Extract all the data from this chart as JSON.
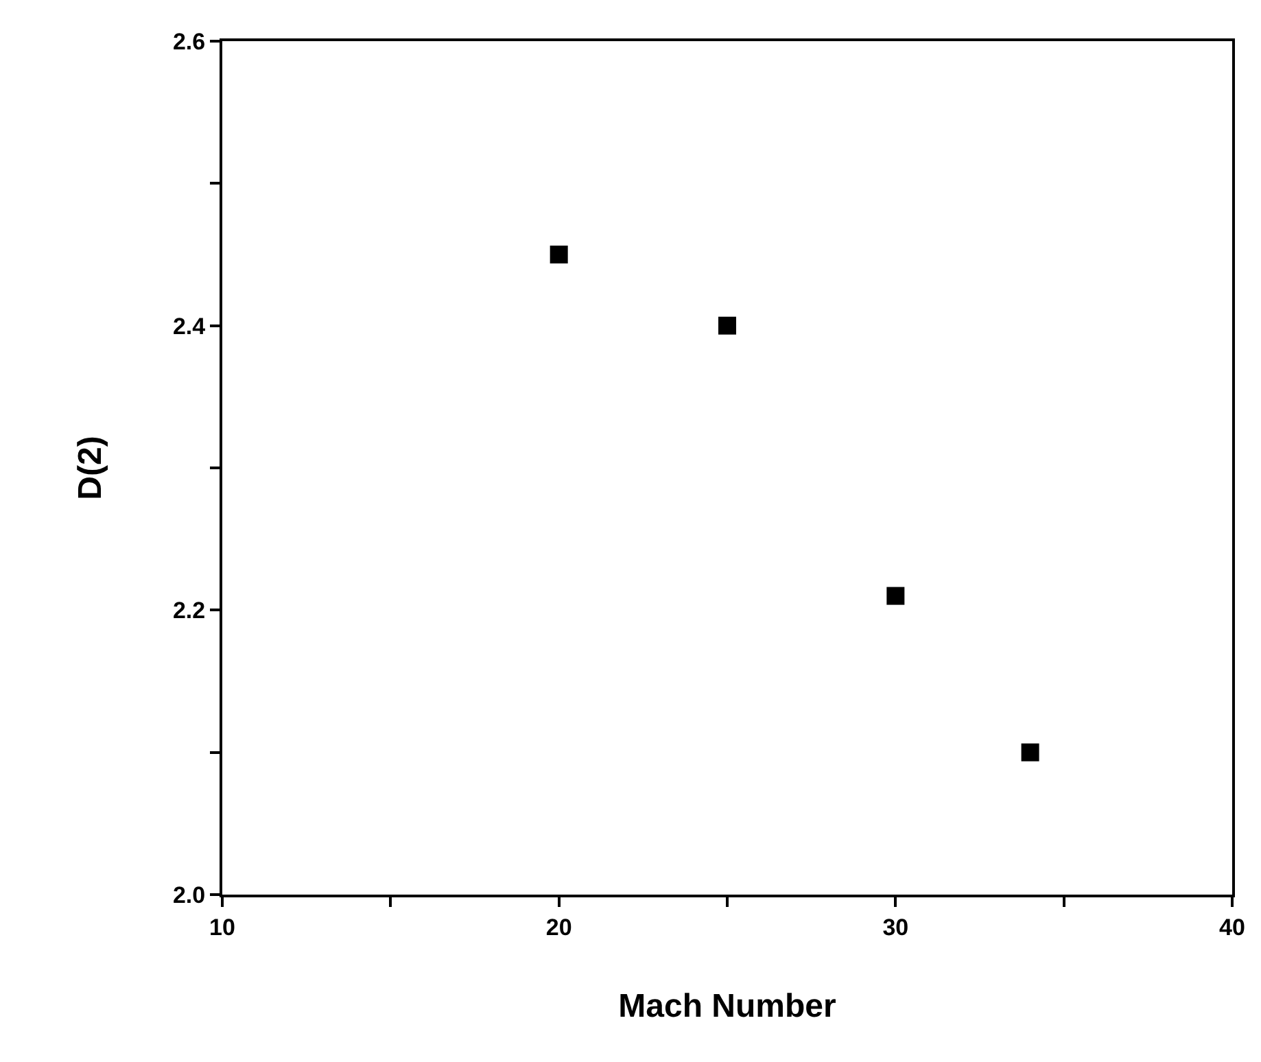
{
  "chart_data": {
    "type": "scatter",
    "xlabel": "Mach Number",
    "ylabel": "D(2)",
    "x": [
      20,
      25,
      30,
      34
    ],
    "series": [
      {
        "color": "#000000",
        "values": [
          2.45,
          2.4,
          2.21,
          2.1
        ]
      }
    ],
    "xlim": [
      10,
      40
    ],
    "xticks": [
      10,
      {
        "value": 15,
        "label": null
      },
      20,
      {
        "value": 25,
        "label": null
      },
      30,
      {
        "value": 35,
        "label": null
      },
      40
    ],
    "ylim": [
      2.0,
      2.6
    ],
    "yticks": [
      {
        "value": 2.0,
        "label": "2.0"
      },
      {
        "value": 2.1,
        "label": null
      },
      {
        "value": 2.2,
        "label": "2.2"
      },
      {
        "value": 2.3,
        "label": null
      },
      {
        "value": 2.4,
        "label": "2.4"
      },
      {
        "value": 2.5,
        "label": null
      },
      {
        "value": 2.6,
        "label": "2.6"
      }
    ],
    "marker": "square"
  }
}
